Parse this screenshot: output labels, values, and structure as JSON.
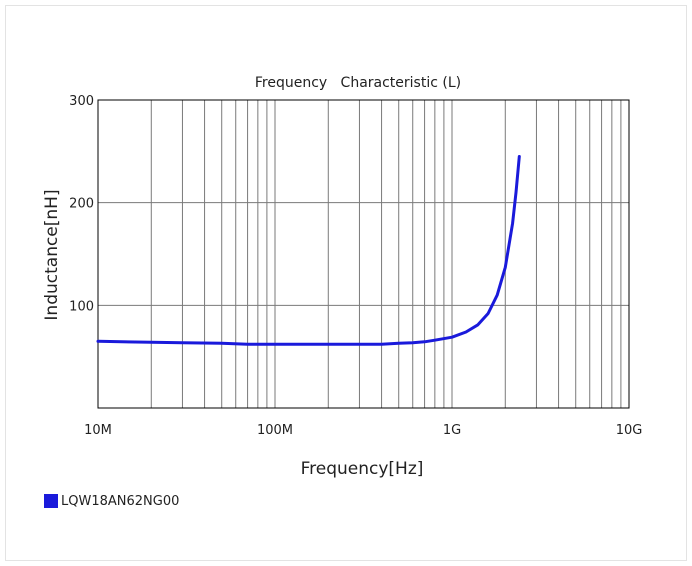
{
  "chart_data": {
    "type": "line",
    "title": "Frequency   Characteristic (L)",
    "xlabel": "Frequency[Hz]",
    "ylabel": "Inductance[nH]",
    "x_scale": "log",
    "xlim": [
      10000000,
      10000000000
    ],
    "ylim": [
      0,
      300
    ],
    "x_ticks": [
      10000000,
      100000000,
      1000000000,
      10000000000
    ],
    "x_tick_labels": [
      "10M",
      "100M",
      "1G",
      "10G"
    ],
    "y_ticks": [
      100,
      200,
      300
    ],
    "y_tick_labels": [
      "100",
      "200",
      "300"
    ],
    "grid": true,
    "legend_position": "bottom-left",
    "series": [
      {
        "name": "LQW18AN62NG00",
        "color": "#1a1adb",
        "points": [
          [
            10000000,
            65
          ],
          [
            20000000,
            64
          ],
          [
            30000000,
            63.5
          ],
          [
            50000000,
            63
          ],
          [
            70000000,
            62
          ],
          [
            100000000,
            62
          ],
          [
            200000000,
            62
          ],
          [
            300000000,
            62
          ],
          [
            400000000,
            62
          ],
          [
            500000000,
            63
          ],
          [
            600000000,
            63.5
          ],
          [
            700000000,
            64.5
          ],
          [
            800000000,
            66
          ],
          [
            1000000000,
            69
          ],
          [
            1200000000,
            74
          ],
          [
            1400000000,
            81
          ],
          [
            1600000000,
            92
          ],
          [
            1800000000,
            110
          ],
          [
            2000000000,
            137
          ],
          [
            2200000000,
            180
          ],
          [
            2300000000,
            210
          ],
          [
            2400000000,
            245
          ]
        ]
      }
    ]
  }
}
